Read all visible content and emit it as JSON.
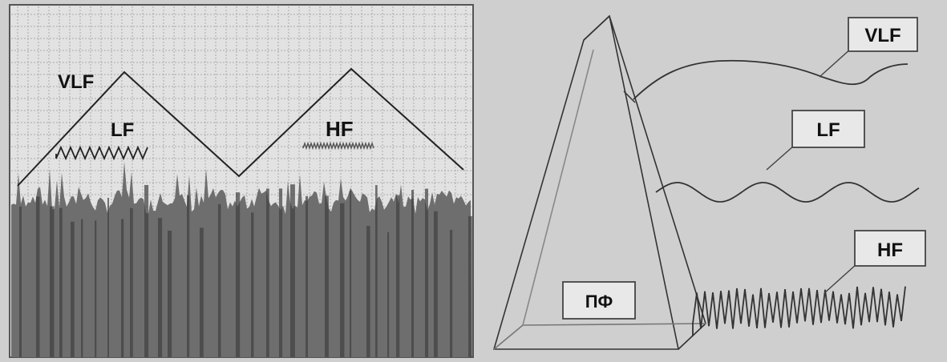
{
  "left_panel": {
    "labels": {
      "vlf": "VLF",
      "lf": "LF",
      "hf": "HF"
    }
  },
  "right_panel": {
    "labels": {
      "vlf": "VLF",
      "lf": "LF",
      "hf": "HF",
      "filter": "ПФ"
    }
  },
  "colors": {
    "background": "#cfcfcf",
    "panel_background": "#e2e2e2",
    "grid": "#a9a9a9",
    "spectrum_fill": "#6e6e6e",
    "spectrum_dark": "#3f3f3f",
    "line": "#222222",
    "box_fill": "#e8e8e8"
  }
}
